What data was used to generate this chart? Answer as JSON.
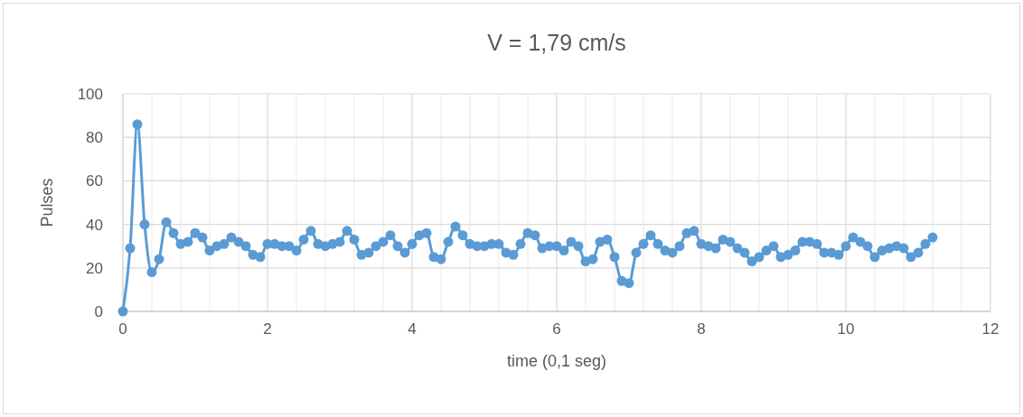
{
  "chart_data": {
    "type": "line",
    "title": "V = 1,79 cm/s",
    "xlabel": "time (0,1 seg)",
    "ylabel": "Pulses",
    "x": [
      0,
      0.1,
      0.2,
      0.3,
      0.4,
      0.5,
      0.6,
      0.7,
      0.8,
      0.9,
      1,
      1.1,
      1.2,
      1.3,
      1.4,
      1.5,
      1.6,
      1.7,
      1.8,
      1.9,
      2,
      2.1,
      2.2,
      2.3,
      2.4,
      2.5,
      2.6,
      2.7,
      2.8,
      2.9,
      3,
      3.1,
      3.2,
      3.3,
      3.4,
      3.5,
      3.6,
      3.7,
      3.8,
      3.9,
      4,
      4.1,
      4.2,
      4.3,
      4.4,
      4.5,
      4.6,
      4.7,
      4.8,
      4.9,
      5,
      5.1,
      5.2,
      5.3,
      5.4,
      5.5,
      5.6,
      5.7,
      5.8,
      5.9,
      6,
      6.1,
      6.2,
      6.3,
      6.4,
      6.5,
      6.6,
      6.7,
      6.8,
      6.9,
      7,
      7.1,
      7.2,
      7.3,
      7.4,
      7.5,
      7.6,
      7.7,
      7.8,
      7.9,
      8,
      8.1,
      8.2,
      8.3,
      8.4,
      8.5,
      8.6,
      8.7,
      8.8,
      8.9,
      9,
      9.1,
      9.2,
      9.3,
      9.4,
      9.5,
      9.6,
      9.7,
      9.8,
      9.9,
      10,
      10.1,
      10.2,
      10.3,
      10.4,
      10.5,
      10.6,
      10.7,
      10.8,
      10.9,
      11,
      11.1,
      11.2
    ],
    "series": [
      {
        "color": "#5b9bd5",
        "values": [
          0,
          29,
          86,
          40,
          18,
          24,
          41,
          36,
          31,
          32,
          36,
          34,
          28,
          30,
          31,
          34,
          32,
          30,
          26,
          25,
          31,
          31,
          30,
          30,
          28,
          33,
          37,
          31,
          30,
          31,
          32,
          37,
          33,
          26,
          27,
          30,
          32,
          35,
          30,
          27,
          31,
          35,
          36,
          25,
          24,
          32,
          39,
          35,
          31,
          30,
          30,
          31,
          31,
          27,
          26,
          31,
          36,
          35,
          29,
          30,
          30,
          28,
          32,
          30,
          23,
          24,
          32,
          33,
          25,
          14,
          13,
          27,
          31,
          35,
          31,
          28,
          27,
          30,
          36,
          37,
          31,
          30,
          29,
          33,
          32,
          29,
          27,
          23,
          25,
          28,
          30,
          25,
          26,
          28,
          32,
          32,
          31,
          27,
          27,
          26,
          30,
          34,
          32,
          30,
          25,
          28,
          29,
          30,
          29,
          25,
          27,
          31,
          34
        ]
      }
    ],
    "xlim": [
      0,
      12
    ],
    "xticks": [
      0,
      {
        "value": 0.4,
        "label": null
      },
      {
        "value": 0.8,
        "label": null
      },
      {
        "value": 1.2,
        "label": null
      },
      {
        "value": 1.6,
        "label": null
      },
      2,
      {
        "value": 2.4,
        "label": null
      },
      {
        "value": 2.8,
        "label": null
      },
      {
        "value": 3.2,
        "label": null
      },
      {
        "value": 3.6,
        "label": null
      },
      4,
      {
        "value": 4.4,
        "label": null
      },
      {
        "value": 4.8,
        "label": null
      },
      {
        "value": 5.2,
        "label": null
      },
      {
        "value": 5.6,
        "label": null
      },
      6,
      {
        "value": 6.4,
        "label": null
      },
      {
        "value": 6.8,
        "label": null
      },
      {
        "value": 7.2,
        "label": null
      },
      {
        "value": 7.6,
        "label": null
      },
      8,
      {
        "value": 8.4,
        "label": null
      },
      {
        "value": 8.8,
        "label": null
      },
      {
        "value": 9.2,
        "label": null
      },
      {
        "value": 9.6,
        "label": null
      },
      10,
      {
        "value": 10.4,
        "label": null
      },
      {
        "value": 10.8,
        "label": null
      },
      {
        "value": 11.2,
        "label": null
      },
      {
        "value": 11.6,
        "label": null
      },
      12
    ],
    "ylim": [
      0,
      100
    ],
    "yticks": [
      0,
      20,
      40,
      60,
      80,
      100
    ],
    "grid": true,
    "marker": "circle",
    "line_style": "solid"
  }
}
